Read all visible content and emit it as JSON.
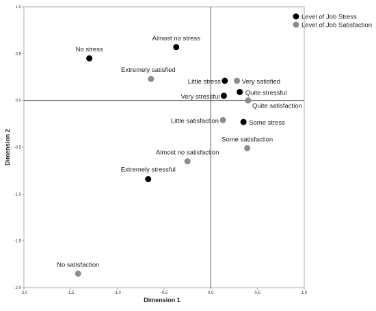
{
  "chart_data": {
    "type": "scatter",
    "xlabel": "Dimension 1",
    "ylabel": "Dimension 2",
    "xlim": [
      -2.0,
      1.0
    ],
    "ylim": [
      -2.0,
      1.0
    ],
    "x_ticks": [
      "-2.0",
      "-1.5",
      "-1.0",
      "-0.5",
      "0.0",
      "0.5",
      "1.0"
    ],
    "y_ticks": [
      "1.0",
      "0.5",
      "0.0",
      "-0.5",
      "-1.0",
      "-1.5",
      "-2.0"
    ],
    "legend_position": "top-right",
    "series": [
      {
        "name": "Level of Job Stress",
        "color": "#000000",
        "points": [
          {
            "label": "No stress",
            "x": -1.3,
            "y": 0.45
          },
          {
            "label": "Almost no stress",
            "x": -0.37,
            "y": 0.57
          },
          {
            "label": "Little stress",
            "x": 0.15,
            "y": 0.21
          },
          {
            "label": "Quite stressful",
            "x": 0.31,
            "y": 0.09
          },
          {
            "label": "Very stressful",
            "x": 0.14,
            "y": 0.05
          },
          {
            "label": "Some stress",
            "x": 0.35,
            "y": -0.23
          },
          {
            "label": "Extremely stressful",
            "x": -0.67,
            "y": -0.84
          }
        ]
      },
      {
        "name": "Level of Job Satisfaction",
        "color": "#8c8c8c",
        "points": [
          {
            "label": "Extremely satisfied",
            "x": -0.64,
            "y": 0.23
          },
          {
            "label": "Very satisfied",
            "x": 0.28,
            "y": 0.21
          },
          {
            "label": "Quite satisfaction",
            "x": 0.4,
            "y": 0.0
          },
          {
            "label": "Little satisfaction",
            "x": 0.13,
            "y": -0.21
          },
          {
            "label": "Some satisfaction",
            "x": 0.39,
            "y": -0.51
          },
          {
            "label": "Almost no satisfaction",
            "x": -0.25,
            "y": -0.65
          },
          {
            "label": "No satisfaction",
            "x": -1.42,
            "y": -1.85
          }
        ]
      }
    ]
  }
}
